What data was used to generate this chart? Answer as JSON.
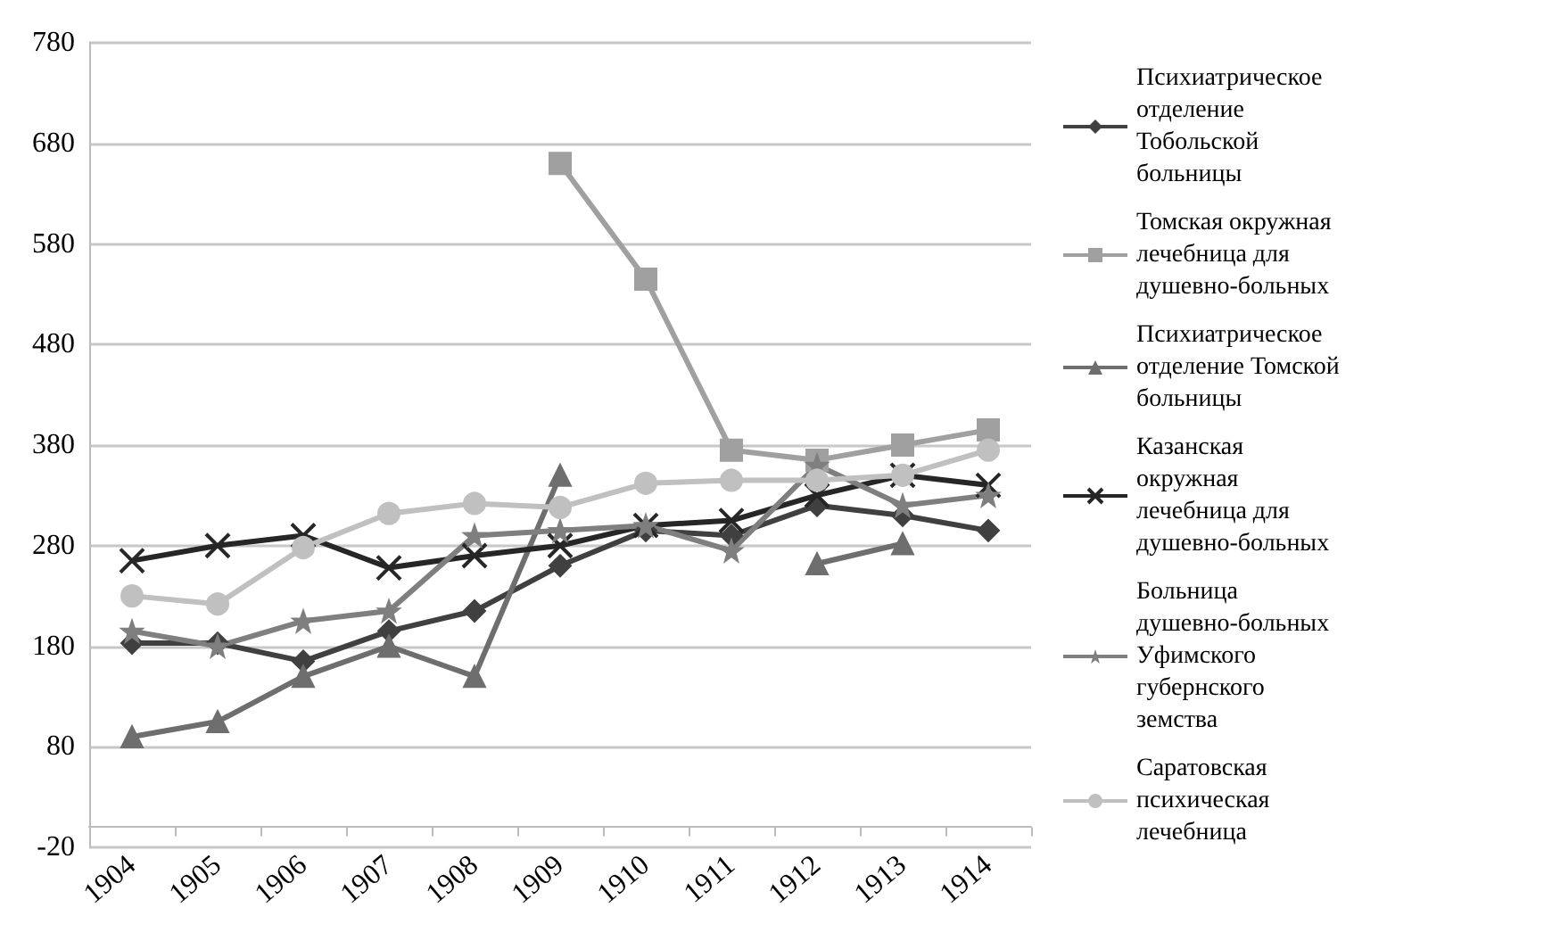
{
  "chart_data": {
    "type": "line",
    "categories": [
      "1904",
      "1905",
      "1906",
      "1907",
      "1908",
      "1909",
      "1910",
      "1911",
      "1912",
      "1913",
      "1914"
    ],
    "series": [
      {
        "name": "Психиатрическое отделение Тобольской больницы",
        "color": "#404040",
        "marker": "diamond",
        "values": [
          183,
          183,
          165,
          195,
          215,
          260,
          295,
          290,
          320,
          310,
          295
        ]
      },
      {
        "name": "Томская окружная лечебница для душевно-больных",
        "color": "#a0a0a0",
        "marker": "square",
        "values": [
          null,
          null,
          null,
          null,
          null,
          660,
          545,
          375,
          365,
          380,
          395
        ]
      },
      {
        "name": "Психиатрическое отделение Томской больницы",
        "color": "#6e6e6e",
        "marker": "triangle",
        "values": [
          90,
          105,
          150,
          180,
          150,
          350,
          null,
          null,
          262,
          282,
          null
        ]
      },
      {
        "name": "Казанская окружная лечебница для душевно-больных",
        "color": "#262626",
        "marker": "cross",
        "values": [
          265,
          280,
          290,
          258,
          270,
          280,
          300,
          305,
          330,
          350,
          340
        ]
      },
      {
        "name": "Больница душевно-больных Уфимского губернского земства",
        "color": "#7f7f7f",
        "marker": "star",
        "values": [
          195,
          180,
          205,
          215,
          290,
          295,
          300,
          275,
          360,
          320,
          330
        ]
      },
      {
        "name": "Саратовская психическая лечебница",
        "color": "#c0c0c0",
        "marker": "circle",
        "values": [
          230,
          222,
          278,
          312,
          322,
          318,
          342,
          345,
          345,
          350,
          375
        ]
      }
    ],
    "ylim": [
      -20,
      780
    ],
    "yticks": [
      -20,
      80,
      180,
      280,
      380,
      480,
      580,
      680,
      780
    ],
    "grid": "y",
    "legend": "right"
  }
}
